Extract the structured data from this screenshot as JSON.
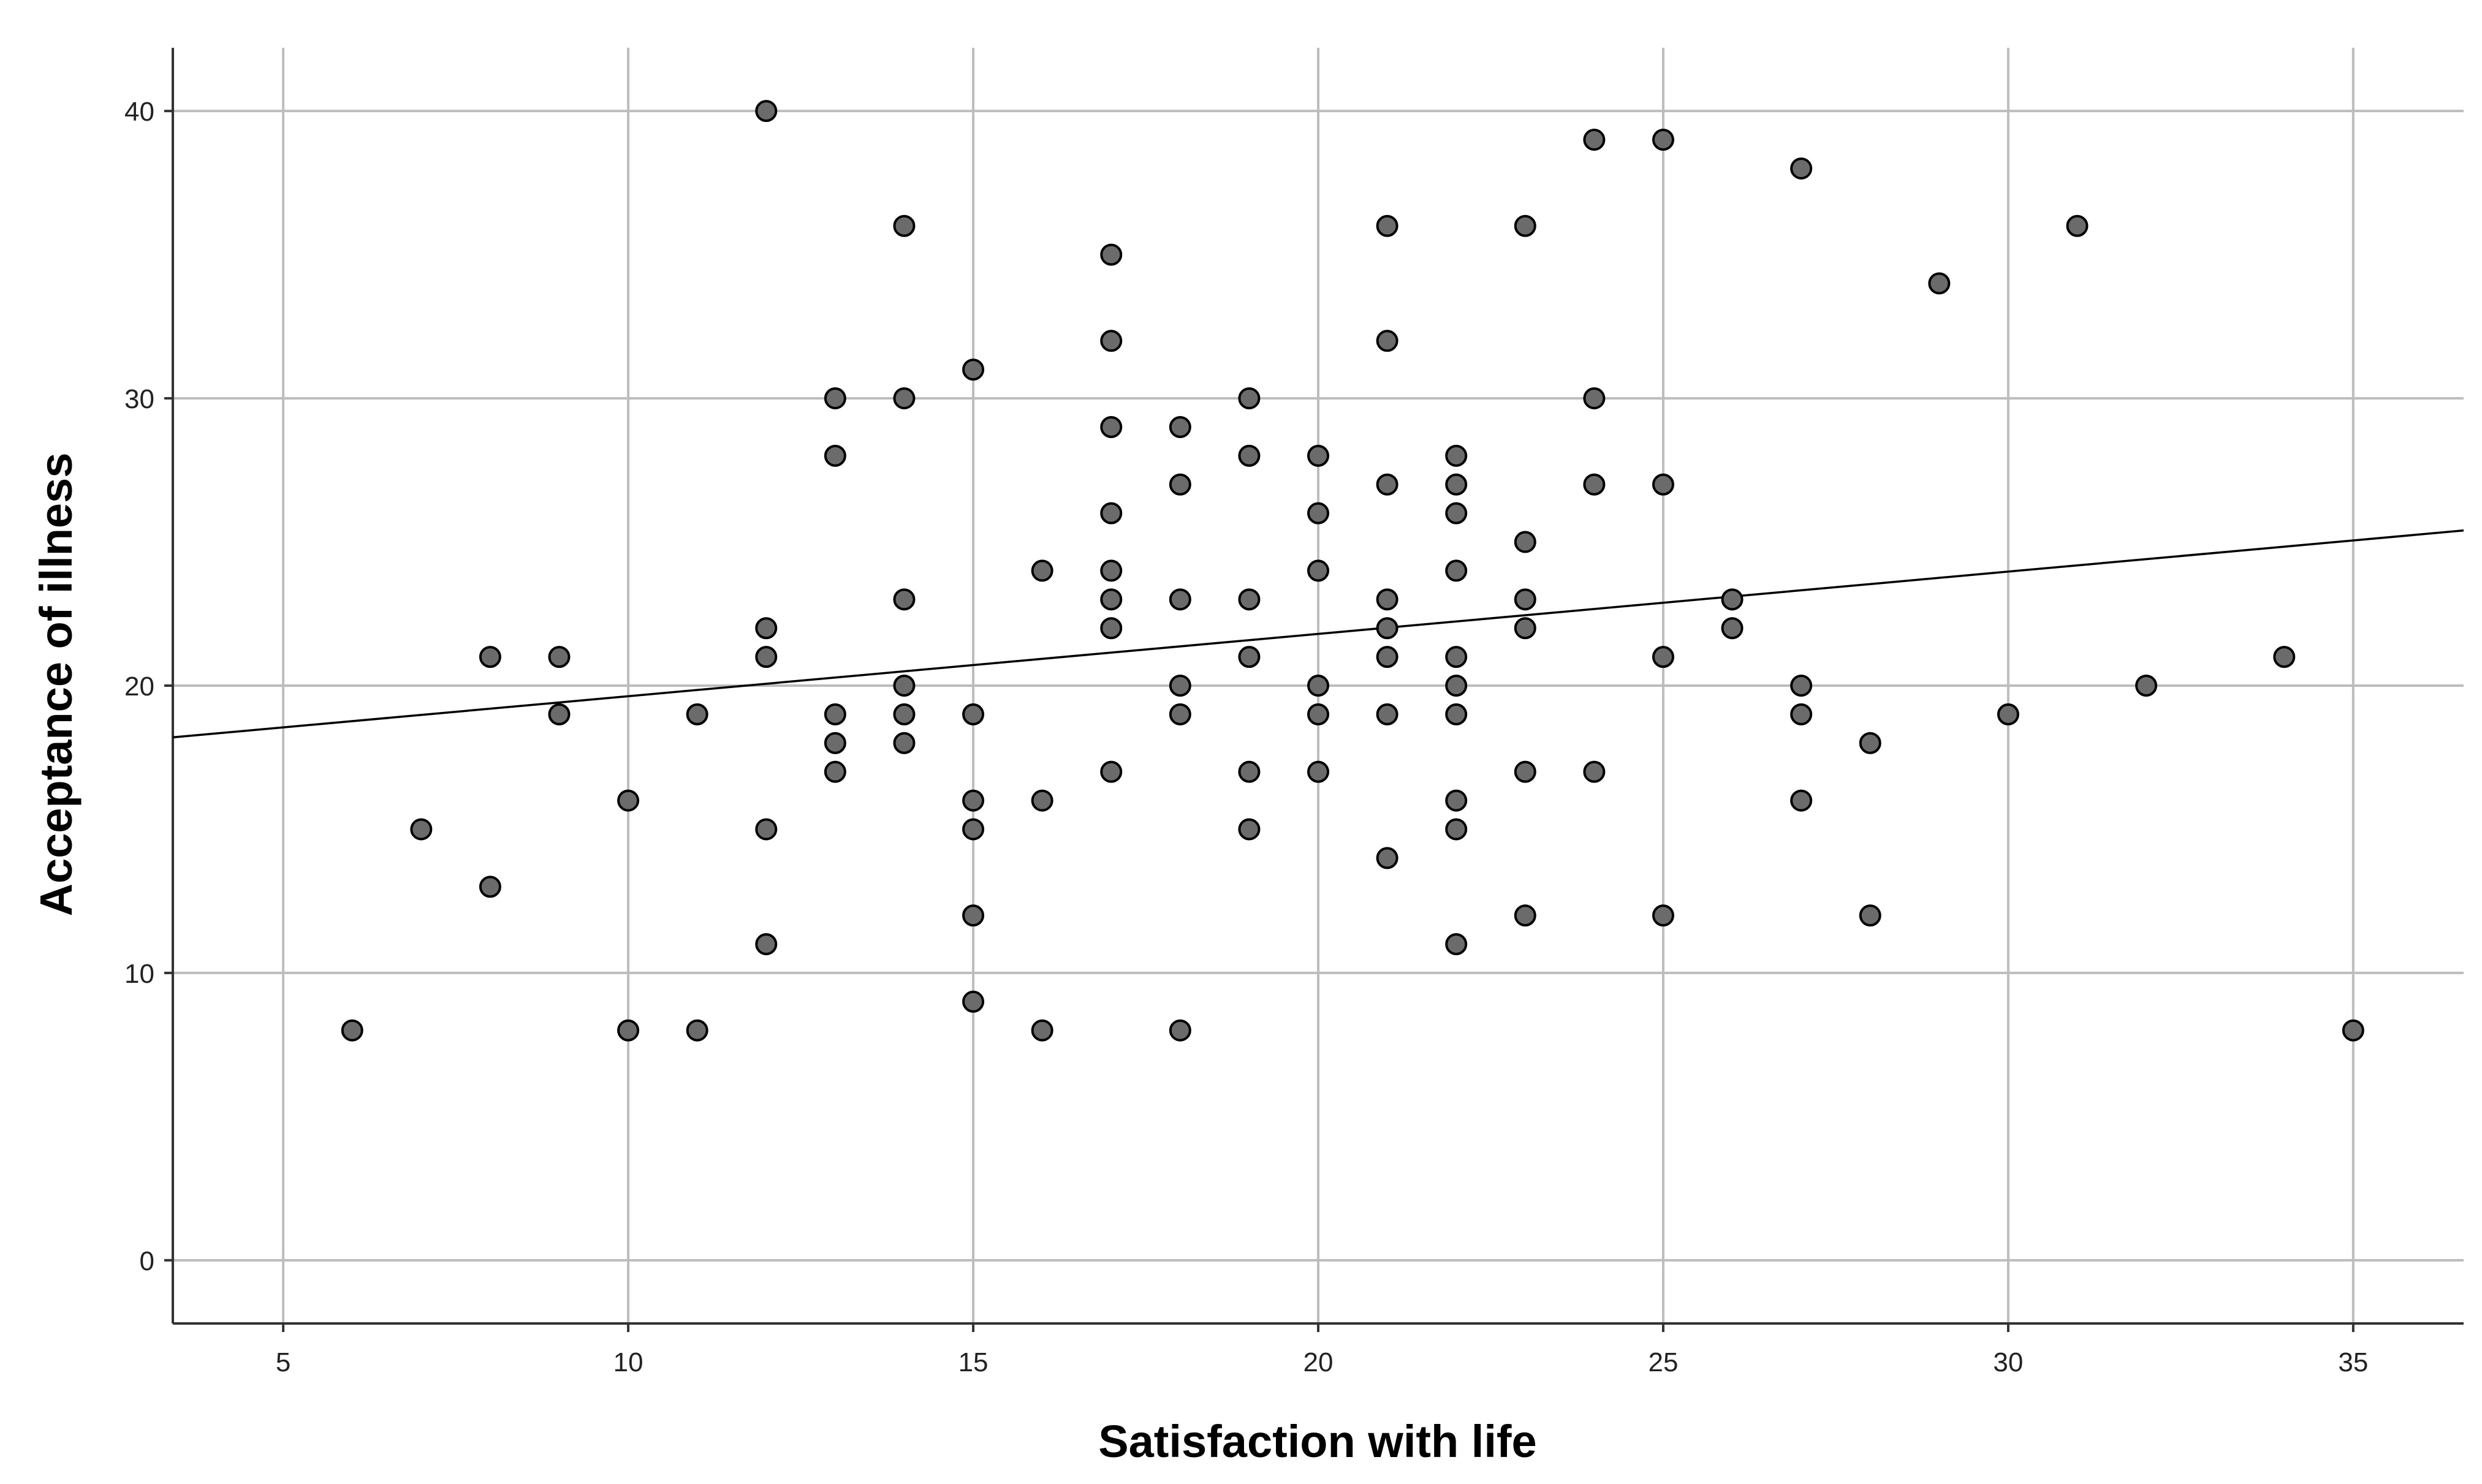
{
  "chart_data": {
    "type": "scatter",
    "xlabel": "Satisfaction with life",
    "ylabel": "Acceptance of illness",
    "xlim": [
      3.4,
      36.6
    ],
    "ylim": [
      -2.2,
      42.2
    ],
    "x_ticks": [
      5,
      10,
      15,
      20,
      25,
      30,
      35
    ],
    "y_ticks": [
      0,
      10,
      20,
      30,
      40
    ],
    "grid": true,
    "colors": {
      "point_fill": "#6b6b6b",
      "point_edge": "#000000",
      "grid": "#bdbdbd",
      "fit_line": "#000000"
    },
    "fit_line": {
      "x": [
        3.4,
        36.6
      ],
      "y": [
        18.2,
        25.4
      ]
    },
    "points": [
      [
        6,
        8
      ],
      [
        7,
        15
      ],
      [
        8,
        21
      ],
      [
        8,
        13
      ],
      [
        9,
        21
      ],
      [
        9,
        19
      ],
      [
        10,
        16
      ],
      [
        10,
        8
      ],
      [
        11,
        19
      ],
      [
        11,
        8
      ],
      [
        12,
        40
      ],
      [
        12,
        22
      ],
      [
        12,
        21
      ],
      [
        12,
        15
      ],
      [
        12,
        11
      ],
      [
        13,
        30
      ],
      [
        13,
        28
      ],
      [
        13,
        19
      ],
      [
        13,
        18
      ],
      [
        13,
        17
      ],
      [
        14,
        36
      ],
      [
        14,
        30
      ],
      [
        14,
        23
      ],
      [
        14,
        20
      ],
      [
        14,
        19
      ],
      [
        14,
        18
      ],
      [
        15,
        31
      ],
      [
        15,
        19
      ],
      [
        15,
        16
      ],
      [
        15,
        15
      ],
      [
        15,
        12
      ],
      [
        15,
        9
      ],
      [
        16,
        24
      ],
      [
        16,
        16
      ],
      [
        16,
        8
      ],
      [
        17,
        35
      ],
      [
        17,
        32
      ],
      [
        17,
        29
      ],
      [
        17,
        26
      ],
      [
        17,
        24
      ],
      [
        17,
        23
      ],
      [
        17,
        22
      ],
      [
        17,
        17
      ],
      [
        18,
        29
      ],
      [
        18,
        27
      ],
      [
        18,
        23
      ],
      [
        18,
        20
      ],
      [
        18,
        19
      ],
      [
        18,
        8
      ],
      [
        19,
        30
      ],
      [
        19,
        28
      ],
      [
        19,
        23
      ],
      [
        19,
        21
      ],
      [
        19,
        17
      ],
      [
        19,
        15
      ],
      [
        20,
        28
      ],
      [
        20,
        26
      ],
      [
        20,
        24
      ],
      [
        20,
        20
      ],
      [
        20,
        19
      ],
      [
        20,
        17
      ],
      [
        21,
        36
      ],
      [
        21,
        32
      ],
      [
        21,
        27
      ],
      [
        21,
        23
      ],
      [
        21,
        22
      ],
      [
        21,
        21
      ],
      [
        21,
        19
      ],
      [
        21,
        14
      ],
      [
        22,
        28
      ],
      [
        22,
        27
      ],
      [
        22,
        26
      ],
      [
        22,
        24
      ],
      [
        22,
        21
      ],
      [
        22,
        20
      ],
      [
        22,
        19
      ],
      [
        22,
        16
      ],
      [
        22,
        15
      ],
      [
        22,
        11
      ],
      [
        23,
        36
      ],
      [
        23,
        25
      ],
      [
        23,
        23
      ],
      [
        23,
        22
      ],
      [
        23,
        17
      ],
      [
        23,
        12
      ],
      [
        24,
        39
      ],
      [
        24,
        30
      ],
      [
        24,
        27
      ],
      [
        24,
        17
      ],
      [
        25,
        39
      ],
      [
        25,
        27
      ],
      [
        25,
        21
      ],
      [
        25,
        12
      ],
      [
        26,
        23
      ],
      [
        26,
        22
      ],
      [
        27,
        38
      ],
      [
        27,
        20
      ],
      [
        27,
        19
      ],
      [
        27,
        16
      ],
      [
        28,
        18
      ],
      [
        28,
        12
      ],
      [
        29,
        34
      ],
      [
        30,
        19
      ],
      [
        31,
        36
      ],
      [
        32,
        20
      ],
      [
        34,
        21
      ],
      [
        35,
        8
      ]
    ]
  }
}
